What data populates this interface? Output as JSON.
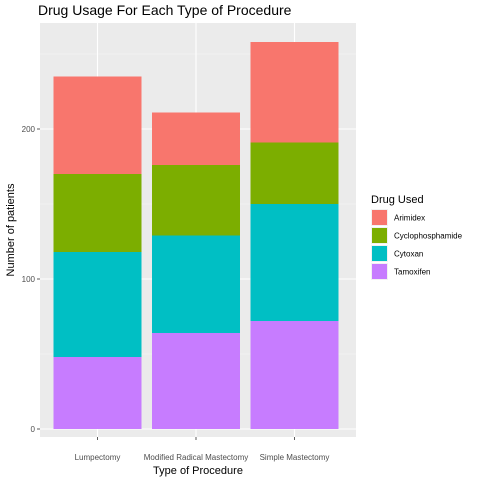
{
  "chart_data": {
    "type": "bar",
    "stacked": true,
    "title": "Drug Usage For Each Type of Procedure",
    "xlabel": "Type of Procedure",
    "ylabel": "Number of patients",
    "categories": [
      "Lumpectomy",
      "Modified Radical Mastectomy",
      "Simple Mastectomy"
    ],
    "ylim": [
      0,
      270
    ],
    "yticks": [
      0,
      100,
      200
    ],
    "grid": true,
    "legend": {
      "title": "Drug Used",
      "position": "right"
    },
    "series": [
      {
        "name": "Tamoxifen",
        "color": "#C77CFF",
        "values": [
          48,
          64,
          72
        ]
      },
      {
        "name": "Cytoxan",
        "color": "#00BFC4",
        "values": [
          70,
          65,
          78
        ]
      },
      {
        "name": "Cyclophosphamide",
        "color": "#7CAE00",
        "values": [
          52,
          47,
          41
        ]
      },
      {
        "name": "Arimidex",
        "color": "#F8766D",
        "values": [
          65,
          35,
          67
        ]
      }
    ],
    "legend_order": [
      "Arimidex",
      "Cyclophosphamide",
      "Cytoxan",
      "Tamoxifen"
    ]
  }
}
